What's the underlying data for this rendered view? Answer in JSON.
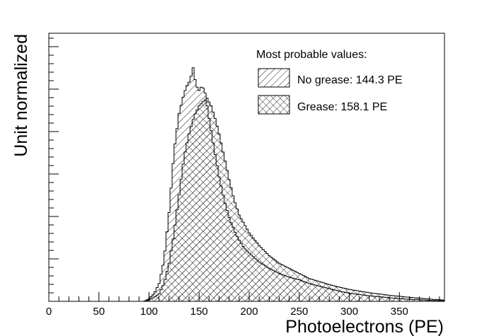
{
  "chart_data": {
    "type": "area",
    "xlabel": "Photoelectrons (PE)",
    "ylabel": "Unit normalized",
    "xlim": [
      0,
      395
    ],
    "ylim": [
      0,
      1.0
    ],
    "x_ticks": [
      0,
      50,
      100,
      150,
      200,
      250,
      300,
      350
    ],
    "legend": {
      "title": "Most probable values:",
      "placement": "top-right"
    },
    "series": [
      {
        "name": "No grease: 144.3 PE",
        "hatch": "single-diagonal",
        "x": [
          95,
          100,
          105,
          110,
          115,
          120,
          125,
          130,
          135,
          138,
          141,
          144,
          147,
          150,
          153,
          156,
          160,
          165,
          170,
          175,
          180,
          185,
          190,
          195,
          200,
          210,
          220,
          230,
          240,
          250,
          260,
          270,
          280,
          290,
          300,
          320,
          340,
          360,
          380,
          395
        ],
        "values": [
          0.0,
          0.01,
          0.03,
          0.07,
          0.16,
          0.35,
          0.59,
          0.74,
          0.82,
          0.85,
          0.87,
          0.92,
          0.85,
          0.83,
          0.85,
          0.82,
          0.72,
          0.6,
          0.49,
          0.4,
          0.33,
          0.28,
          0.24,
          0.21,
          0.19,
          0.155,
          0.13,
          0.11,
          0.095,
          0.085,
          0.07,
          0.06,
          0.05,
          0.04,
          0.032,
          0.022,
          0.014,
          0.008,
          0.004,
          0.002
        ]
      },
      {
        "name": "Grease: 158.1 PE",
        "hatch": "cross",
        "x": [
          95,
          100,
          105,
          110,
          115,
          120,
          125,
          130,
          135,
          140,
          145,
          150,
          155,
          158,
          162,
          166,
          170,
          175,
          180,
          185,
          190,
          200,
          210,
          220,
          230,
          240,
          250,
          260,
          270,
          280,
          290,
          300,
          320,
          340,
          360,
          380,
          395
        ],
        "values": [
          0.0,
          0.005,
          0.015,
          0.03,
          0.07,
          0.15,
          0.27,
          0.42,
          0.57,
          0.66,
          0.73,
          0.77,
          0.79,
          0.8,
          0.77,
          0.72,
          0.66,
          0.57,
          0.48,
          0.4,
          0.34,
          0.27,
          0.22,
          0.18,
          0.15,
          0.13,
          0.11,
          0.09,
          0.078,
          0.066,
          0.056,
          0.047,
          0.034,
          0.024,
          0.016,
          0.009,
          0.005
        ]
      }
    ]
  }
}
